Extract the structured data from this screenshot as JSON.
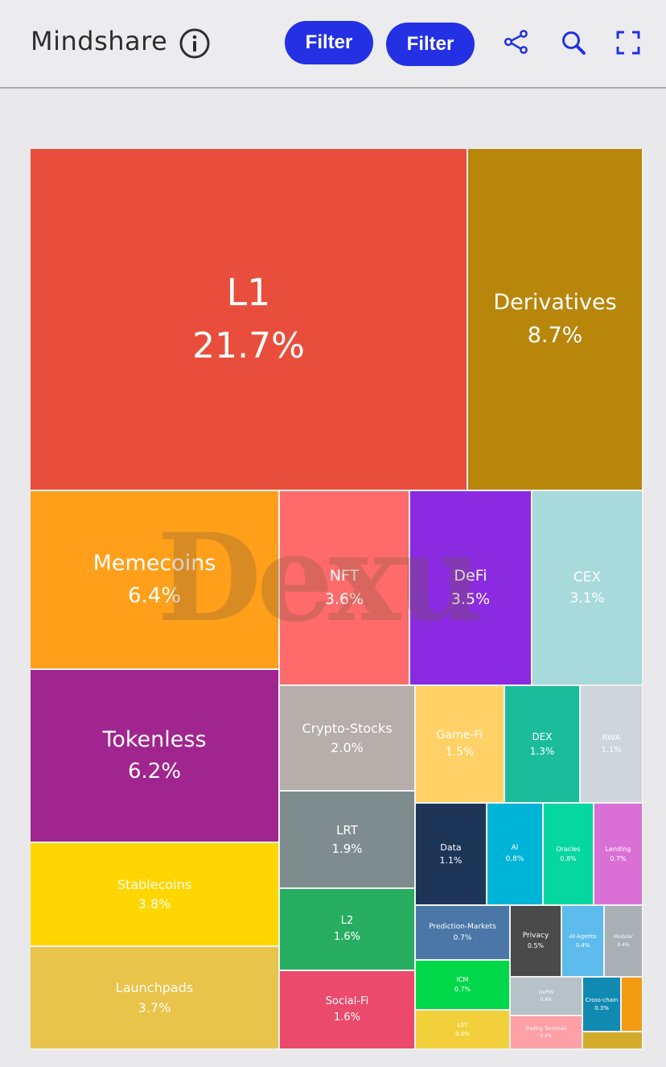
{
  "header": {
    "title": "Mindshare",
    "filter_button_1": "Filter",
    "filter_button_2": "Filter"
  },
  "watermark": "Dexu",
  "chart_data": {
    "type": "treemap",
    "series": [
      {
        "name": "L1",
        "value": 21.7,
        "value_label": "21.7%",
        "color": "#e94e3c"
      },
      {
        "name": "Derivatives",
        "value": 8.7,
        "value_label": "8.7%",
        "color": "#b8860b"
      },
      {
        "name": "Memecoins",
        "value": 6.4,
        "value_label": "6.4%",
        "color": "#ff9f1a"
      },
      {
        "name": "NFT",
        "value": 3.6,
        "value_label": "3.6%",
        "color": "#ff6b6b"
      },
      {
        "name": "DeFi",
        "value": 3.5,
        "value_label": "3.5%",
        "color": "#8a2be2"
      },
      {
        "name": "CEX",
        "value": 3.1,
        "value_label": "3.1%",
        "color": "#a8dadc"
      },
      {
        "name": "Tokenless",
        "value": 6.2,
        "value_label": "6.2%",
        "color": "#a0258f"
      },
      {
        "name": "Crypto-Stocks",
        "value": 2.0,
        "value_label": "2.0%",
        "color": "#b5aeaa"
      },
      {
        "name": "Game-Fi",
        "value": 1.5,
        "value_label": "1.5%",
        "color": "#ffd166"
      },
      {
        "name": "DEX",
        "value": 1.3,
        "value_label": "1.3%",
        "color": "#1abc9c"
      },
      {
        "name": "RWA",
        "value": 1.1,
        "value_label": "1.1%",
        "color": "#ced6dc"
      },
      {
        "name": "LRT",
        "value": 1.9,
        "value_label": "1.9%",
        "color": "#7f8c8d"
      },
      {
        "name": "Data",
        "value": 1.1,
        "value_label": "1.1%",
        "color": "#1d3557"
      },
      {
        "name": "AI",
        "value": 0.8,
        "value_label": "0.8%",
        "color": "#00b4d8"
      },
      {
        "name": "Oracles",
        "value": 0.8,
        "value_label": "0.8%",
        "color": "#06d6a0"
      },
      {
        "name": "Lending",
        "value": 0.7,
        "value_label": "0.7%",
        "color": "#da70d6"
      },
      {
        "name": "Stablecoins",
        "value": 3.8,
        "value_label": "3.8%",
        "color": "#ffd600"
      },
      {
        "name": "L2",
        "value": 1.6,
        "value_label": "1.6%",
        "color": "#27ae60"
      },
      {
        "name": "Prediction-Markets",
        "value": 0.7,
        "value_label": "0.7%",
        "color": "#4a77a8"
      },
      {
        "name": "Privacy",
        "value": 0.5,
        "value_label": "0.5%",
        "color": "#4a4a4a"
      },
      {
        "name": "AI-Agents",
        "value": 0.4,
        "value_label": "0.4%",
        "color": "#5dbced"
      },
      {
        "name": "Modular",
        "value": 0.4,
        "value_label": "0.4%",
        "color": "#a9b0b4"
      },
      {
        "name": "ICM",
        "value": 0.7,
        "value_label": "0.7%",
        "color": "#00d84a"
      },
      {
        "name": "DePIN",
        "value": 0.4,
        "value_label": "0.4%",
        "color": "#b6c1c8"
      },
      {
        "name": "Cross-chain",
        "value": 0.3,
        "value_label": "0.3%",
        "color": "#118ab2"
      },
      {
        "name": "",
        "value": 0.3,
        "value_label": "",
        "color": "#f39c12"
      },
      {
        "name": "Launchpads",
        "value": 3.7,
        "value_label": "3.7%",
        "color": "#e9c44a"
      },
      {
        "name": "Social-Fi",
        "value": 1.6,
        "value_label": "1.6%",
        "color": "#ec4a6d"
      },
      {
        "name": "LST",
        "value": 0.6,
        "value_label": "0.6%",
        "color": "#f2d03b"
      },
      {
        "name": "Trading Terminals",
        "value": 0.4,
        "value_label": "0.4%",
        "color": "#ff9fa6"
      },
      {
        "name": "",
        "value": 0.2,
        "value_label": "",
        "color": "#d4ac2c"
      }
    ]
  }
}
